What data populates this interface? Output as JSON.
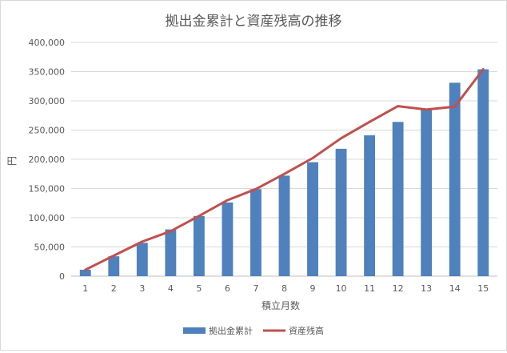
{
  "chart_data": {
    "type": "bar",
    "title": "拠出金累計と資産残高の推移",
    "xlabel": "積立月数",
    "ylabel": "円",
    "categories": [
      "1",
      "2",
      "3",
      "4",
      "5",
      "6",
      "7",
      "8",
      "9",
      "10",
      "11",
      "12",
      "13",
      "14",
      "15"
    ],
    "ylim": [
      0,
      400000
    ],
    "yticks": [
      0,
      50000,
      100000,
      150000,
      200000,
      250000,
      300000,
      350000,
      400000
    ],
    "ytick_labels": [
      "0",
      "50,000",
      "100,000",
      "150,000",
      "200,000",
      "250,000",
      "300,000",
      "350,000",
      "400,000"
    ],
    "grid": true,
    "legend": "bottom",
    "series": [
      {
        "name": "拠出金累計",
        "type": "bar",
        "color": "#4f81bd",
        "values": [
          11000,
          34000,
          57000,
          80000,
          103000,
          126000,
          149000,
          172000,
          195000,
          218000,
          241000,
          264000,
          287000,
          331000,
          354000
        ]
      },
      {
        "name": "資産残高",
        "type": "line",
        "color": "#c0504d",
        "values": [
          11000,
          35000,
          59000,
          77000,
          103000,
          130000,
          149000,
          175000,
          202000,
          236000,
          264000,
          291000,
          285000,
          290000,
          354000
        ]
      }
    ]
  }
}
